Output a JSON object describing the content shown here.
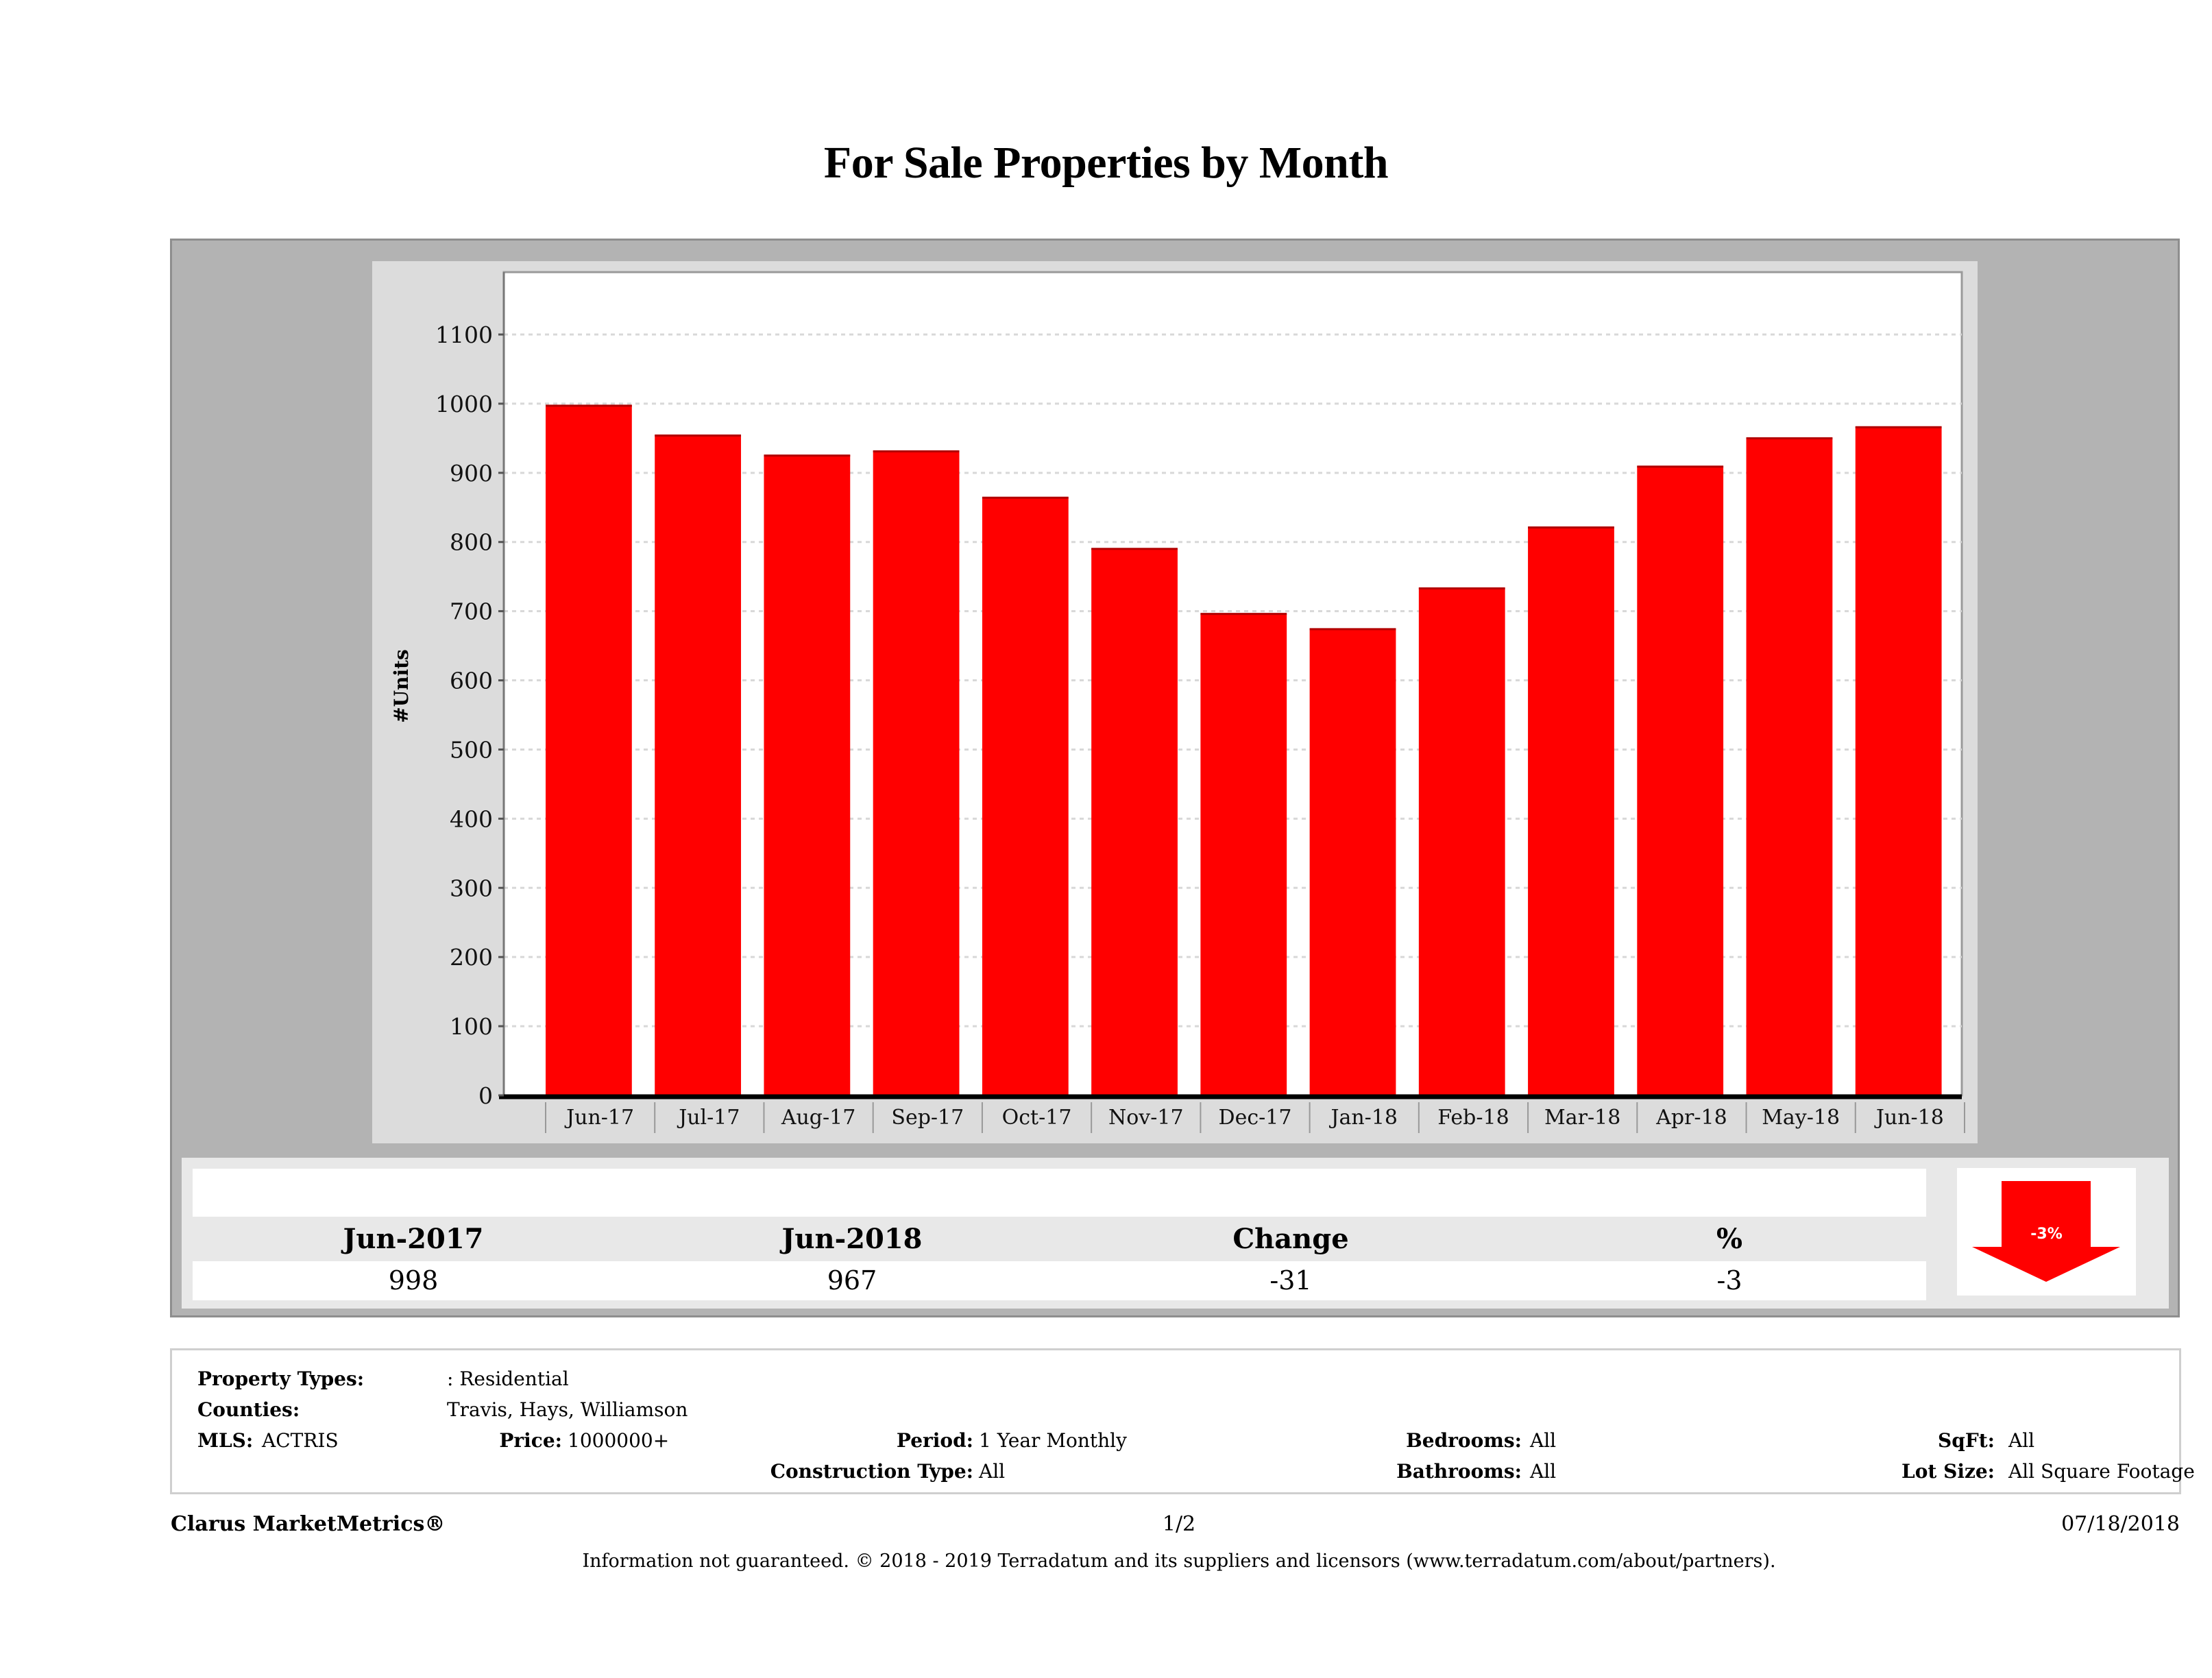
{
  "chart_data": {
    "type": "bar",
    "title": "For Sale Properties by Month",
    "xlabel": "",
    "ylabel": "#Units",
    "ylim": [
      0,
      1150
    ],
    "yticks": [
      0,
      100,
      200,
      300,
      400,
      500,
      600,
      700,
      800,
      900,
      1000,
      1100
    ],
    "grid": true,
    "categories": [
      "Jun-17",
      "Jul-17",
      "Aug-17",
      "Sep-17",
      "Oct-17",
      "Nov-17",
      "Dec-17",
      "Jan-18",
      "Feb-18",
      "Mar-18",
      "Apr-18",
      "May-18",
      "Jun-18"
    ],
    "values": [
      998,
      955,
      926,
      932,
      865,
      791,
      697,
      675,
      734,
      822,
      910,
      951,
      967
    ],
    "bar_color": "#ff0000"
  },
  "summary": {
    "headers": [
      "Jun-2017",
      "Jun-2018",
      "Change",
      "%"
    ],
    "values": [
      "998",
      "967",
      "-31",
      "-3"
    ],
    "badge": {
      "label": "-3%",
      "direction": "down",
      "icon": "down-arrow-icon",
      "color": "#ff0000"
    }
  },
  "criteria": {
    "property_types_label": "Property Types:",
    "property_types_value": ": Residential",
    "counties_label": "Counties:",
    "counties_value": "Travis, Hays, Williamson",
    "mls_label": "MLS:",
    "mls_value": "ACTRIS",
    "price_label": "Price:",
    "price_value": "1000000+",
    "period_label": "Period:",
    "period_value": "1 Year Monthly",
    "construction_label": "Construction Type:",
    "construction_value": "All",
    "bedrooms_label": "Bedrooms:",
    "bedrooms_value": "All",
    "bathrooms_label": "Bathrooms:",
    "bathrooms_value": "All",
    "sqft_label": "SqFt:",
    "sqft_value": "All",
    "lotsize_label": "Lot Size:",
    "lotsize_value": "All Square Footage"
  },
  "footer": {
    "brand": "Clarus MarketMetrics®",
    "page": "1/2",
    "date": "07/18/2018",
    "disclaimer": "Information not guaranteed. © 2018 - 2019 Terradatum and its suppliers and licensors (www.terradatum.com/about/partners)."
  }
}
